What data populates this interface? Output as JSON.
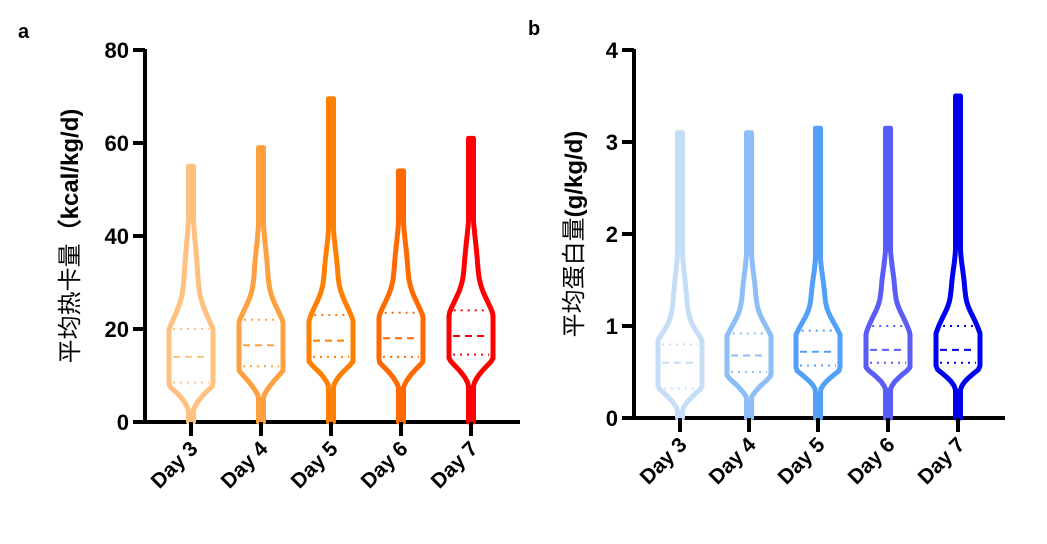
{
  "chart_data": [
    {
      "panel": "a",
      "type": "violin",
      "title": "",
      "ylabel": "平均热卡量（kcal/kg/d)",
      "ylabel_parts": [
        "平均热卡量",
        "（kcal/kg/d)"
      ],
      "xlabel": "",
      "ylim": [
        0,
        80
      ],
      "yticks": [
        0,
        20,
        40,
        60,
        80
      ],
      "grid": false,
      "categories": [
        "Day 3",
        "Day 4",
        "Day 5",
        "Day 6",
        "Day 7"
      ],
      "colors": [
        "#FFC080",
        "#FFA040",
        "#FF8000",
        "#FF6A00",
        "#FF0000"
      ],
      "series": [
        {
          "name": "Day 3",
          "min": 0,
          "q1": 8.5,
          "median": 14,
          "q3": 20,
          "max": 55
        },
        {
          "name": "Day 4",
          "min": 0,
          "q1": 12,
          "median": 16.5,
          "q3": 22,
          "max": 59
        },
        {
          "name": "Day 5",
          "min": 0,
          "q1": 14,
          "median": 17.5,
          "q3": 23,
          "max": 69.5
        },
        {
          "name": "Day 6",
          "min": 0,
          "q1": 14,
          "median": 18,
          "q3": 23.5,
          "max": 54
        },
        {
          "name": "Day 7",
          "min": 0,
          "q1": 14.5,
          "median": 18.5,
          "q3": 24,
          "max": 61
        }
      ]
    },
    {
      "panel": "b",
      "type": "violin",
      "title": "",
      "ylabel": "平均蛋白量(g/kg/d)",
      "ylabel_parts": [
        "平均蛋白量",
        "(g/kg/d)"
      ],
      "xlabel": "",
      "ylim": [
        0,
        4
      ],
      "yticks": [
        0,
        1,
        2,
        3,
        4
      ],
      "grid": false,
      "categories": [
        "Day 3",
        "Day 4",
        "Day 5",
        "Day 6",
        "Day 7"
      ],
      "colors": [
        "#C6DDF8",
        "#8EBEF8",
        "#52A0F8",
        "#5A5CF8",
        "#0000F0"
      ],
      "series": [
        {
          "name": "Day 3",
          "min": 0,
          "q1": 0.32,
          "median": 0.6,
          "q3": 0.8,
          "max": 3.1
        },
        {
          "name": "Day 4",
          "min": 0,
          "q1": 0.5,
          "median": 0.68,
          "q3": 0.92,
          "max": 3.1
        },
        {
          "name": "Day 5",
          "min": 0,
          "q1": 0.57,
          "median": 0.72,
          "q3": 0.95,
          "max": 3.15
        },
        {
          "name": "Day 6",
          "min": 0,
          "q1": 0.6,
          "median": 0.74,
          "q3": 1.0,
          "max": 3.15
        },
        {
          "name": "Day 7",
          "min": 0,
          "q1": 0.6,
          "median": 0.74,
          "q3": 1.0,
          "max": 3.5
        }
      ]
    }
  ]
}
